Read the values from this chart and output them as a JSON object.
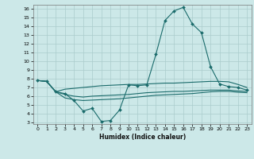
{
  "xlabel": "Humidex (Indice chaleur)",
  "bg_color": "#cce8e8",
  "grid_color": "#aacccc",
  "line_color": "#1a6b6b",
  "xlim": [
    -0.5,
    23.5
  ],
  "ylim": [
    2.8,
    16.5
  ],
  "xticks": [
    0,
    1,
    2,
    3,
    4,
    5,
    6,
    7,
    8,
    9,
    10,
    11,
    12,
    13,
    14,
    15,
    16,
    17,
    18,
    19,
    20,
    21,
    22,
    23
  ],
  "yticks": [
    3,
    4,
    5,
    6,
    7,
    8,
    9,
    10,
    11,
    12,
    13,
    14,
    15,
    16
  ],
  "line1_x": [
    0,
    1,
    2,
    3,
    4,
    5,
    6,
    7,
    8,
    9,
    10,
    11,
    12,
    13,
    14,
    15,
    16,
    17,
    18,
    19,
    20,
    21,
    22,
    23
  ],
  "line1_y": [
    7.8,
    7.7,
    6.5,
    6.3,
    5.5,
    4.3,
    4.6,
    3.1,
    3.2,
    4.4,
    7.3,
    7.2,
    7.3,
    10.8,
    14.7,
    15.8,
    16.2,
    14.3,
    13.3,
    9.4,
    7.4,
    7.1,
    7.0,
    6.7
  ],
  "line2_x": [
    0,
    1,
    2,
    3,
    4,
    5,
    6,
    7,
    8,
    9,
    10,
    11,
    12,
    13,
    14,
    15,
    16,
    17,
    18,
    19,
    20,
    21,
    22,
    23
  ],
  "line2_y": [
    7.8,
    7.7,
    6.5,
    6.8,
    6.9,
    7.0,
    7.1,
    7.2,
    7.25,
    7.3,
    7.35,
    7.35,
    7.4,
    7.45,
    7.5,
    7.5,
    7.55,
    7.6,
    7.65,
    7.7,
    7.7,
    7.65,
    7.35,
    7.0
  ],
  "line3_x": [
    0,
    1,
    2,
    3,
    4,
    5,
    6,
    7,
    8,
    9,
    10,
    11,
    12,
    13,
    14,
    15,
    16,
    17,
    18,
    19,
    20,
    21,
    22,
    23
  ],
  "line3_y": [
    7.8,
    7.7,
    6.5,
    6.2,
    6.0,
    5.9,
    6.0,
    6.05,
    6.1,
    6.15,
    6.2,
    6.3,
    6.4,
    6.45,
    6.5,
    6.55,
    6.55,
    6.6,
    6.65,
    6.7,
    6.7,
    6.7,
    6.6,
    6.55
  ],
  "line4_x": [
    0,
    1,
    2,
    3,
    4,
    5,
    6,
    7,
    8,
    9,
    10,
    11,
    12,
    13,
    14,
    15,
    16,
    17,
    18,
    19,
    20,
    21,
    22,
    23
  ],
  "line4_y": [
    7.8,
    7.7,
    6.5,
    5.8,
    5.6,
    5.5,
    5.55,
    5.6,
    5.65,
    5.7,
    5.8,
    5.9,
    6.0,
    6.1,
    6.15,
    6.2,
    6.25,
    6.3,
    6.4,
    6.5,
    6.55,
    6.55,
    6.45,
    6.4
  ]
}
